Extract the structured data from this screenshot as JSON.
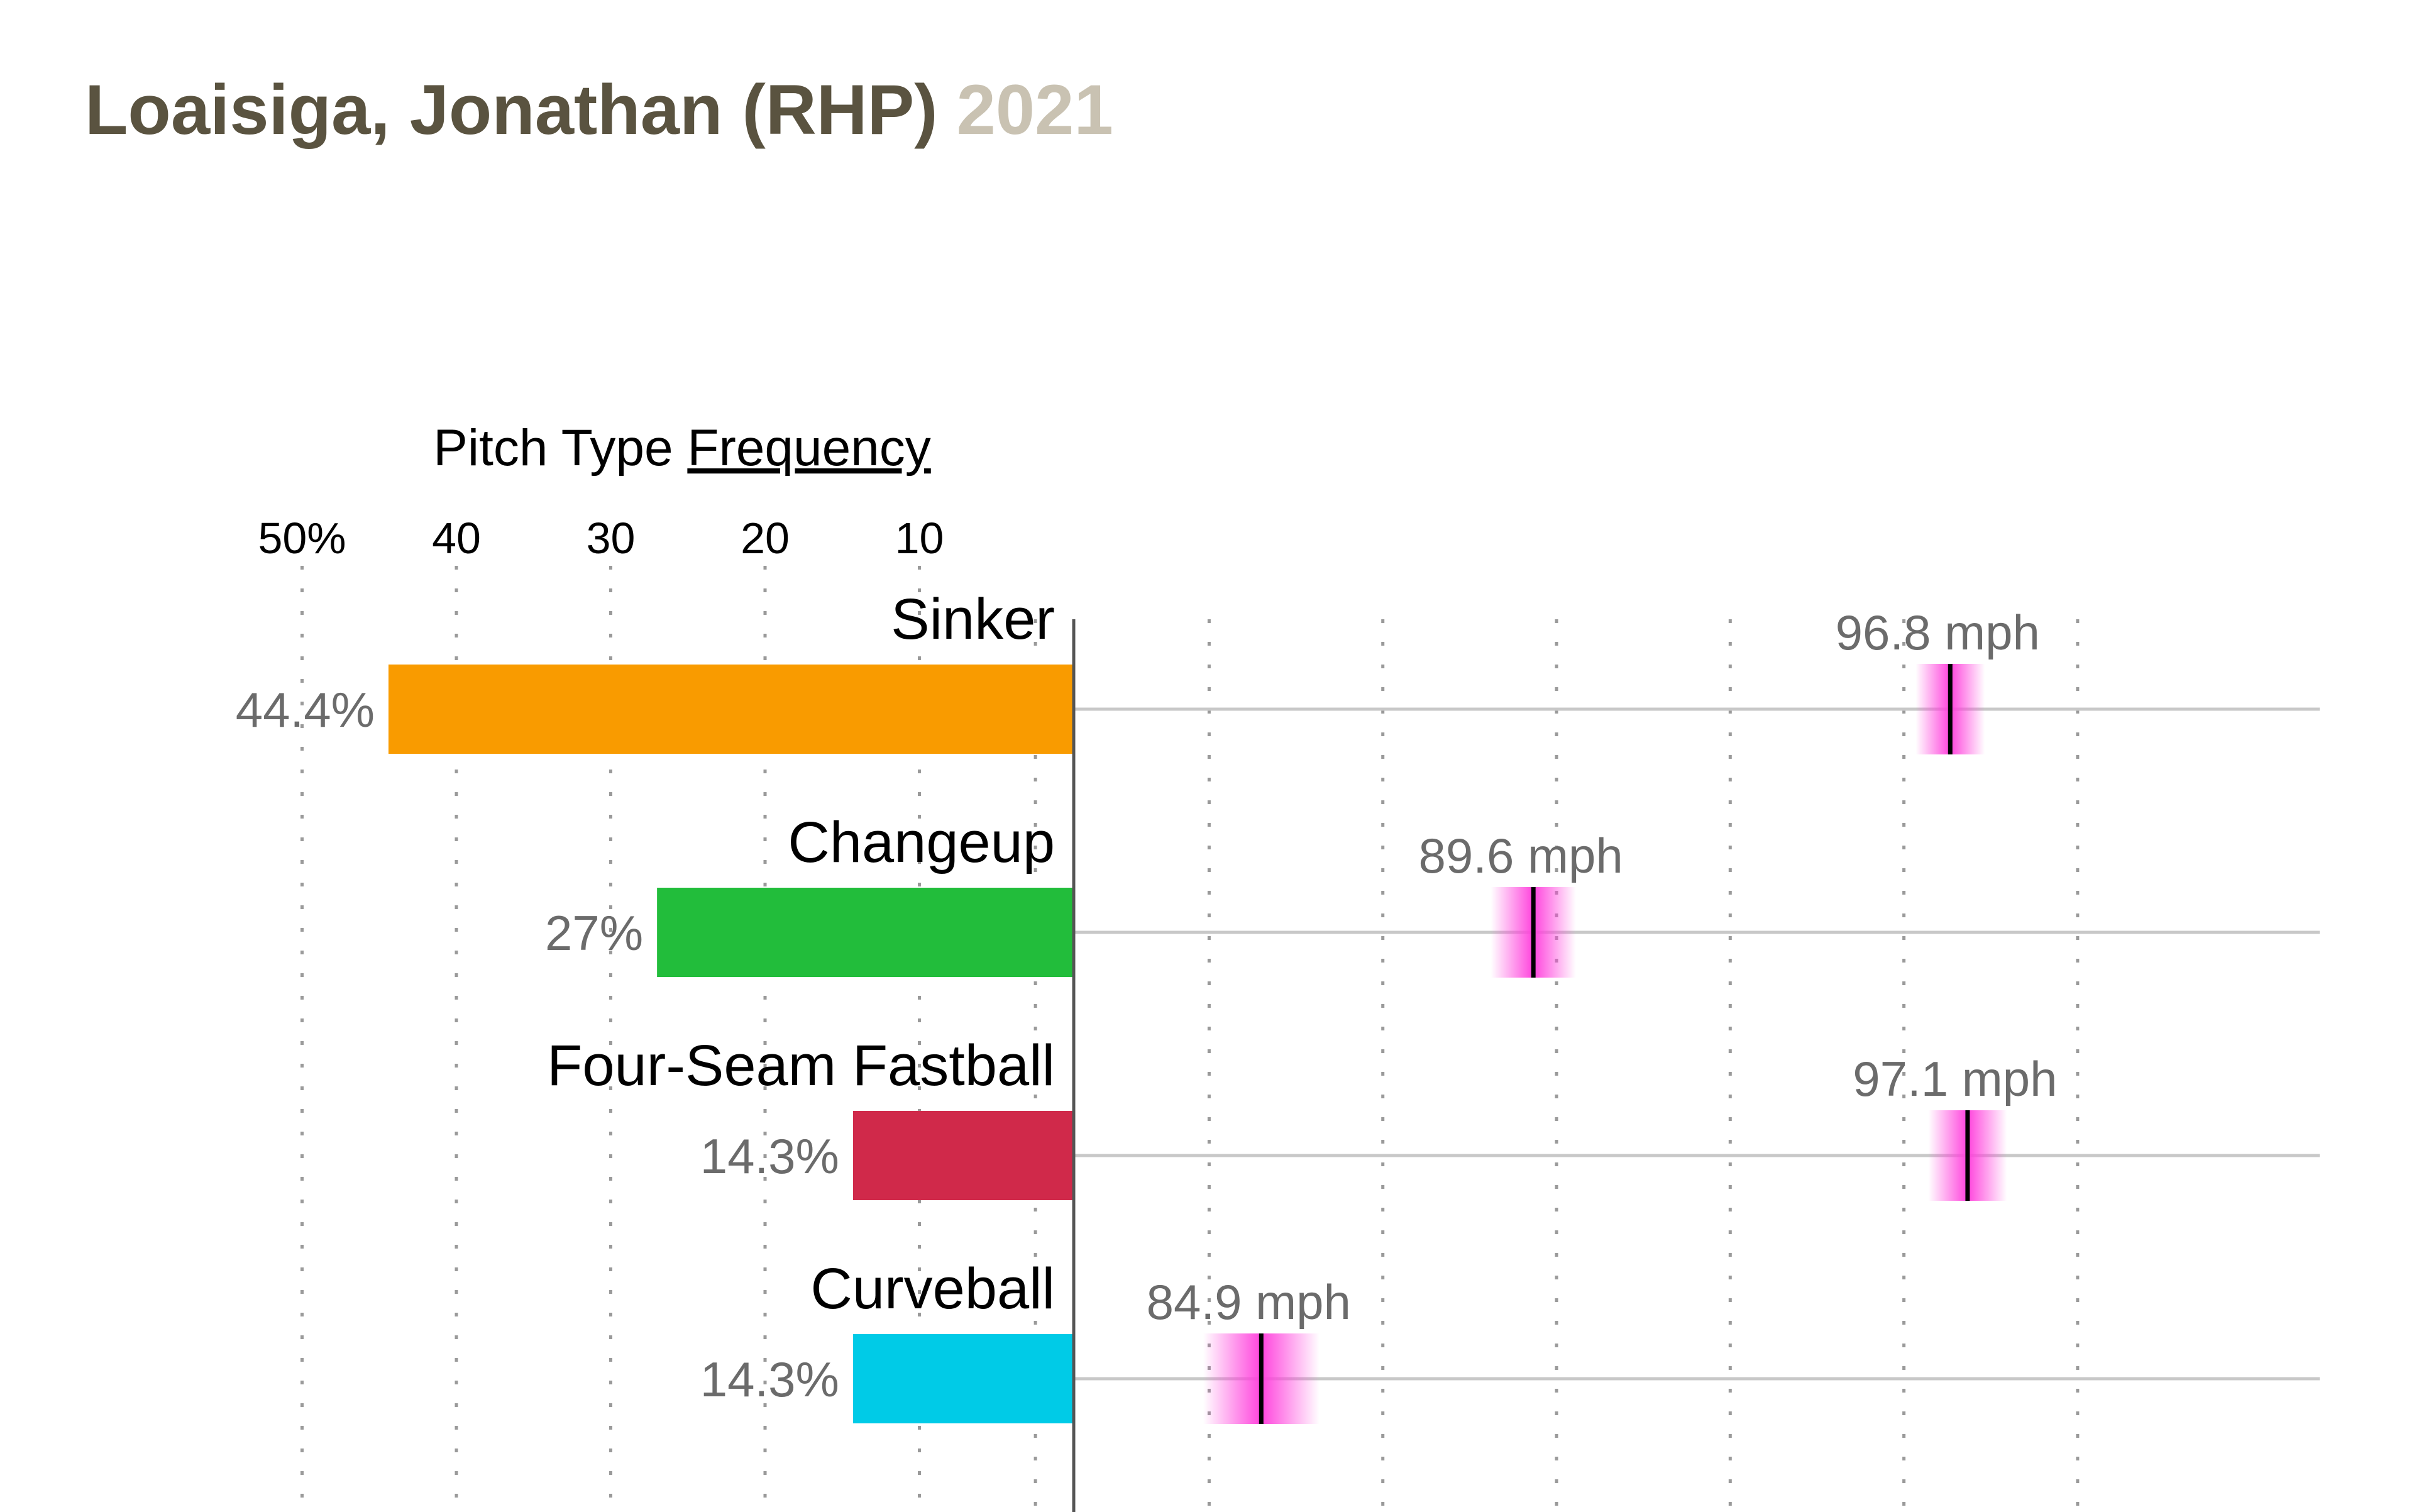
{
  "title": {
    "name": "Loaisiga, Jonathan (RHP)",
    "year": "2021"
  },
  "chart_data": {
    "type": "bar",
    "axis_title_prefix": "Pitch Type ",
    "axis_title_link": "Frequency",
    "frequency_ticks": [
      "50%",
      "40",
      "30",
      "20",
      "10"
    ],
    "frequency_tick_values": [
      50,
      40,
      30,
      20,
      10
    ],
    "velocity_grid_mph": [
      81,
      84,
      87,
      90,
      93,
      96,
      99
    ],
    "categories": [
      "Sinker",
      "Changeup",
      "Four-Seam Fastball",
      "Curveball"
    ],
    "series": [
      {
        "values": [
          44.4,
          27,
          14.3,
          14.3
        ],
        "labels": [
          "44.4%",
          "27%",
          "14.3%",
          "14.3%"
        ]
      },
      {
        "values": [
          96.8,
          89.6,
          97.1,
          84.9
        ],
        "labels": [
          "96.8 mph",
          "89.6 mph",
          "97.1 mph",
          "84.9 mph"
        ]
      }
    ],
    "colors": [
      "#f99b00",
      "#22bd3b",
      "#d0294a",
      "#00cbe7"
    ],
    "marker_color": "#ff44dd",
    "grid": true
  }
}
